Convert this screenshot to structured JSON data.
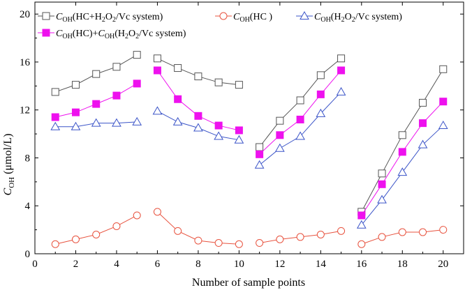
{
  "chart_data": {
    "type": "line",
    "title": "",
    "xlabel": "Number of sample points",
    "ylabel": {
      "italic": "C",
      "sub": "OH",
      "rest": " (μmol/L)"
    },
    "xlim": [
      0,
      21
    ],
    "ylim": [
      0,
      21
    ],
    "xticks": [
      0,
      2,
      4,
      6,
      8,
      10,
      12,
      14,
      16,
      18,
      20
    ],
    "yticks": [
      0,
      4,
      8,
      12,
      16,
      20
    ],
    "segments": [
      [
        1,
        5
      ],
      [
        6,
        10
      ],
      [
        11,
        15
      ],
      [
        16,
        20
      ]
    ],
    "legend_position": "top",
    "series": [
      {
        "name": "C_OH(HC+H2O2/Vc system)",
        "legend": {
          "italic": "C",
          "sub": "OH",
          "parts": [
            [
              "(HC+H",
              false
            ],
            [
              "2",
              true
            ],
            [
              "O",
              false
            ],
            [
              "2",
              true
            ],
            [
              "/Vc system)",
              false
            ]
          ]
        },
        "marker": "open-square",
        "color": "#555555",
        "x": [
          1,
          2,
          3,
          4,
          5,
          6,
          7,
          8,
          9,
          10,
          11,
          12,
          13,
          14,
          15,
          16,
          17,
          18,
          19,
          20
        ],
        "values": [
          13.5,
          14.1,
          15.0,
          15.6,
          16.6,
          16.3,
          15.5,
          14.8,
          14.3,
          14.1,
          8.9,
          11.1,
          12.8,
          14.9,
          16.3,
          3.5,
          6.7,
          9.9,
          12.6,
          15.4
        ]
      },
      {
        "name": "C_OH(HC)",
        "legend": {
          "italic": "C",
          "sub": "OH",
          "parts": [
            [
              "(HC )",
              false
            ]
          ]
        },
        "marker": "open-circle",
        "color": "#e8533f",
        "x": [
          1,
          2,
          3,
          4,
          5,
          6,
          7,
          8,
          9,
          10,
          11,
          12,
          13,
          14,
          15,
          16,
          17,
          18,
          19,
          20
        ],
        "values": [
          0.8,
          1.2,
          1.6,
          2.3,
          3.2,
          3.5,
          1.9,
          1.1,
          0.9,
          0.8,
          0.9,
          1.2,
          1.4,
          1.6,
          1.9,
          0.8,
          1.4,
          1.8,
          1.8,
          2.0
        ]
      },
      {
        "name": "C_OH(H2O2/Vc system)",
        "legend": {
          "italic": "C",
          "sub": "OH",
          "parts": [
            [
              "(H",
              false
            ],
            [
              "2",
              true
            ],
            [
              "O",
              false
            ],
            [
              "2",
              true
            ],
            [
              "/Vc system)",
              false
            ]
          ]
        },
        "marker": "open-triangle",
        "color": "#3b54c8",
        "x": [
          1,
          2,
          3,
          4,
          5,
          6,
          7,
          8,
          9,
          10,
          11,
          12,
          13,
          14,
          15,
          16,
          17,
          18,
          19,
          20
        ],
        "values": [
          10.6,
          10.6,
          10.9,
          10.9,
          11.0,
          11.9,
          11.0,
          10.5,
          9.8,
          9.5,
          7.4,
          8.8,
          9.8,
          11.7,
          13.5,
          2.4,
          4.5,
          6.8,
          9.1,
          10.7
        ]
      },
      {
        "name": "C_OH(HC)+C_OH(H2O2/Vc system)",
        "legend": {
          "italic": "C",
          "sub": "OH",
          "parts": [
            [
              "(HC)+",
              false
            ]
          ],
          "second": {
            "italic": "C",
            "sub": "OH",
            "parts": [
              [
                "(H",
                false
              ],
              [
                "2",
                true
              ],
              [
                "O",
                false
              ],
              [
                "2",
                true
              ],
              [
                "/Vc system)",
                false
              ]
            ]
          }
        },
        "marker": "filled-square",
        "color": "#ee11ee",
        "x": [
          1,
          2,
          3,
          4,
          5,
          6,
          7,
          8,
          9,
          10,
          11,
          12,
          13,
          14,
          15,
          16,
          17,
          18,
          19,
          20
        ],
        "values": [
          11.4,
          11.8,
          12.5,
          13.2,
          14.2,
          15.3,
          12.9,
          11.5,
          10.7,
          10.3,
          8.3,
          9.9,
          11.2,
          13.3,
          15.3,
          3.2,
          5.8,
          8.5,
          10.9,
          12.7
        ]
      }
    ]
  }
}
